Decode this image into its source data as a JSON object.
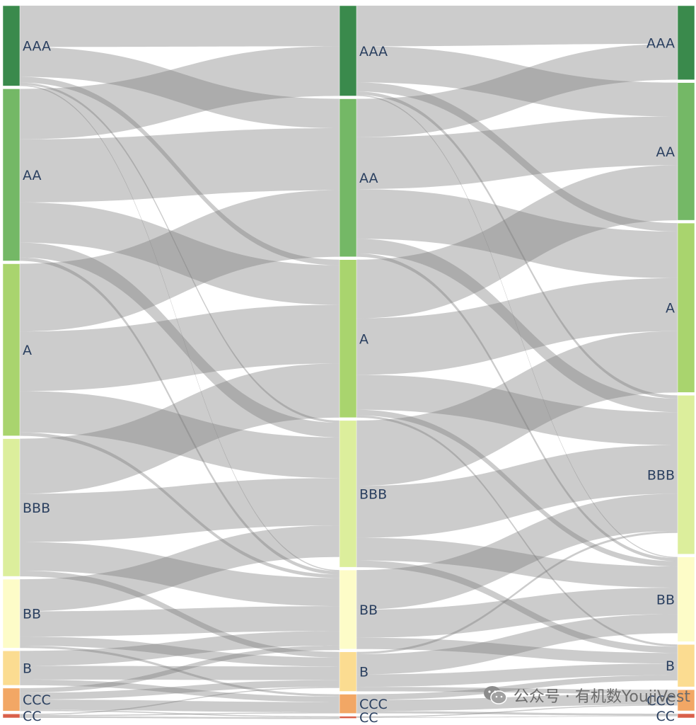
{
  "chart_data": {
    "type": "sankey",
    "stages": [
      {
        "nodes": [
          {
            "label": "AAA",
            "color": "#3a8a4c",
            "value": 7
          },
          {
            "label": "AA",
            "color": "#74b866",
            "value": 15
          },
          {
            "label": "A",
            "color": "#a9d46e",
            "value": 15
          },
          {
            "label": "BBB",
            "color": "#dcee9c",
            "value": 12
          },
          {
            "label": "BB",
            "color": "#fdfcc8",
            "value": 6
          },
          {
            "label": "B",
            "color": "#fbdc91",
            "value": 3
          },
          {
            "label": "CCC",
            "color": "#f2a765",
            "value": 2
          },
          {
            "label": "CC",
            "color": "#d9604a",
            "value": 0.35
          }
        ]
      },
      {
        "nodes": [
          {
            "label": "AAA",
            "color": "#3a8a4c",
            "value": 8
          },
          {
            "label": "AA",
            "color": "#74b866",
            "value": 14
          },
          {
            "label": "A",
            "color": "#a9d46e",
            "value": 14
          },
          {
            "label": "BBB",
            "color": "#dcee9c",
            "value": 13
          },
          {
            "label": "BB",
            "color": "#fdfcc8",
            "value": 7
          },
          {
            "label": "B",
            "color": "#fbdc91",
            "value": 3.5
          },
          {
            "label": "CCC",
            "color": "#f2a765",
            "value": 1.7
          },
          {
            "label": "CC",
            "color": "#d9604a",
            "value": 0.15
          }
        ]
      },
      {
        "nodes": [
          {
            "label": "AAA",
            "color": "#3a8a4c",
            "value": 7
          },
          {
            "label": "AA",
            "color": "#74b866",
            "value": 13
          },
          {
            "label": "A",
            "color": "#a9d46e",
            "value": 16
          },
          {
            "label": "BBB",
            "color": "#dcee9c",
            "value": 15
          },
          {
            "label": "BB",
            "color": "#fdfcc8",
            "value": 8
          },
          {
            "label": "B",
            "color": "#fbdc91",
            "value": 4
          },
          {
            "label": "CCC",
            "color": "#f2a765",
            "value": 2
          },
          {
            "label": "CC",
            "color": "#d9604a",
            "value": 0.4
          }
        ]
      }
    ],
    "links": [
      [
        {
          "source": "AAA",
          "target": "AAA",
          "value": 3.6
        },
        {
          "source": "AAA",
          "target": "AA",
          "value": 2.6
        },
        {
          "source": "AAA",
          "target": "A",
          "value": 0.5
        },
        {
          "source": "AAA",
          "target": "BBB",
          "value": 0.2
        },
        {
          "source": "AAA",
          "target": "BB",
          "value": 0.1
        },
        {
          "source": "AA",
          "target": "AAA",
          "value": 4.4
        },
        {
          "source": "AA",
          "target": "AA",
          "value": 5.5
        },
        {
          "source": "AA",
          "target": "A",
          "value": 3.5
        },
        {
          "source": "AA",
          "target": "BBB",
          "value": 1.3
        },
        {
          "source": "AA",
          "target": "BB",
          "value": 0.3
        },
        {
          "source": "A",
          "target": "AA",
          "value": 5.9
        },
        {
          "source": "A",
          "target": "A",
          "value": 5.2
        },
        {
          "source": "A",
          "target": "BBB",
          "value": 3.6
        },
        {
          "source": "A",
          "target": "BB",
          "value": 0.3
        },
        {
          "source": "BBB",
          "target": "A",
          "value": 4.8
        },
        {
          "source": "BBB",
          "target": "BBB",
          "value": 4.2
        },
        {
          "source": "BBB",
          "target": "BB",
          "value": 2.5
        },
        {
          "source": "BBB",
          "target": "B",
          "value": 0.5
        },
        {
          "source": "BB",
          "target": "BBB",
          "value": 2.8
        },
        {
          "source": "BB",
          "target": "BB",
          "value": 2.2
        },
        {
          "source": "BB",
          "target": "B",
          "value": 0.8
        },
        {
          "source": "BB",
          "target": "CCC",
          "value": 0.2
        },
        {
          "source": "B",
          "target": "BB",
          "value": 1.3
        },
        {
          "source": "B",
          "target": "B",
          "value": 1.2
        },
        {
          "source": "B",
          "target": "CCC",
          "value": 0.5
        },
        {
          "source": "CCC",
          "target": "BB",
          "value": 0.4
        },
        {
          "source": "CCC",
          "target": "B",
          "value": 0.6
        },
        {
          "source": "CCC",
          "target": "CCC",
          "value": 0.9
        },
        {
          "source": "CCC",
          "target": "CC",
          "value": 0.1
        },
        {
          "source": "CC",
          "target": "B",
          "value": 0.1
        },
        {
          "source": "CC",
          "target": "CCC",
          "value": 0.1
        },
        {
          "source": "CC",
          "target": "CC",
          "value": 0.15
        }
      ],
      [
        {
          "source": "AAA",
          "target": "AAA",
          "value": 3.6
        },
        {
          "source": "AAA",
          "target": "AA",
          "value": 3.2
        },
        {
          "source": "AAA",
          "target": "A",
          "value": 0.8
        },
        {
          "source": "AAA",
          "target": "BBB",
          "value": 0.3
        },
        {
          "source": "AAA",
          "target": "BB",
          "value": 0.1
        },
        {
          "source": "AA",
          "target": "AAA",
          "value": 3.4
        },
        {
          "source": "AA",
          "target": "AA",
          "value": 4.6
        },
        {
          "source": "AA",
          "target": "A",
          "value": 4.4
        },
        {
          "source": "AA",
          "target": "BBB",
          "value": 1.3
        },
        {
          "source": "AA",
          "target": "BB",
          "value": 0.3
        },
        {
          "source": "A",
          "target": "AA",
          "value": 5.2
        },
        {
          "source": "A",
          "target": "A",
          "value": 5.0
        },
        {
          "source": "A",
          "target": "BBB",
          "value": 3.1
        },
        {
          "source": "A",
          "target": "BB",
          "value": 0.5
        },
        {
          "source": "A",
          "target": "B",
          "value": 0.2
        },
        {
          "source": "BBB",
          "target": "A",
          "value": 5.8
        },
        {
          "source": "BBB",
          "target": "BBB",
          "value": 4.6
        },
        {
          "source": "BBB",
          "target": "BB",
          "value": 2.0
        },
        {
          "source": "BBB",
          "target": "B",
          "value": 0.6
        },
        {
          "source": "BB",
          "target": "BBB",
          "value": 3.5
        },
        {
          "source": "BB",
          "target": "BB",
          "value": 2.5
        },
        {
          "source": "BB",
          "target": "B",
          "value": 1.0
        },
        {
          "source": "B",
          "target": "BBB",
          "value": 0.2
        },
        {
          "source": "B",
          "target": "BB",
          "value": 1.8
        },
        {
          "source": "B",
          "target": "B",
          "value": 1.1
        },
        {
          "source": "B",
          "target": "CCC",
          "value": 0.4
        },
        {
          "source": "CCC",
          "target": "B",
          "value": 0.5
        },
        {
          "source": "CCC",
          "target": "CCC",
          "value": 1.0
        },
        {
          "source": "CCC",
          "target": "CC",
          "value": 0.2
        },
        {
          "source": "CC",
          "target": "CCC",
          "value": 0.1
        },
        {
          "source": "CC",
          "target": "CC",
          "value": 0.05
        }
      ]
    ]
  },
  "watermark": {
    "text": "公众号 · 有机数YoujiVest",
    "icon": "wechat-icon"
  }
}
